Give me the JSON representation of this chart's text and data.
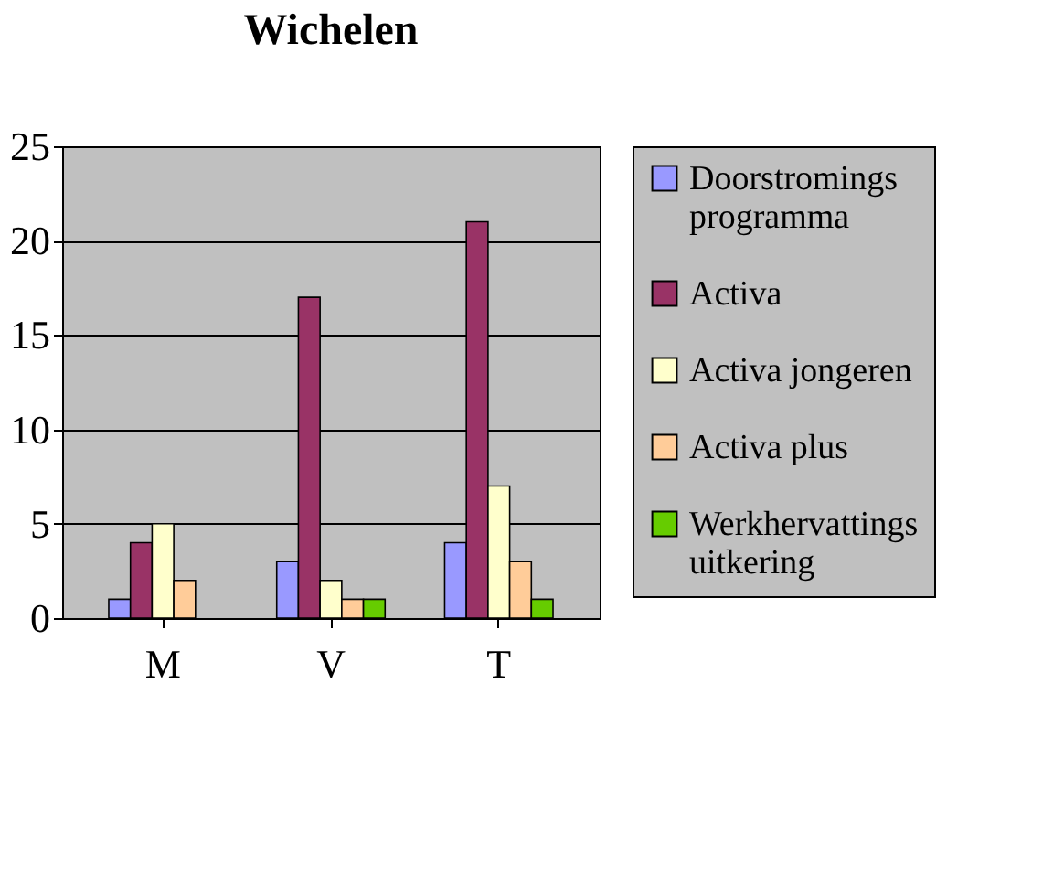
{
  "chart_data": {
    "type": "bar",
    "title": "Wichelen",
    "categories": [
      "M",
      "V",
      "T"
    ],
    "series": [
      {
        "name": "Doorstromings programma",
        "color": "#9999ff",
        "values": [
          1,
          3,
          4
        ]
      },
      {
        "name": "Activa",
        "color": "#993366",
        "values": [
          4,
          17,
          21
        ]
      },
      {
        "name": "Activa jongeren",
        "color": "#ffffcc",
        "values": [
          5,
          2,
          7
        ]
      },
      {
        "name": "Activa plus",
        "color": "#ffcc99",
        "values": [
          2,
          1,
          3
        ]
      },
      {
        "name": "Werkhervattings uitkering",
        "color": "#66cc00",
        "values": [
          null,
          1,
          1
        ]
      }
    ],
    "ylim": [
      0,
      25
    ],
    "yticks": [
      0,
      5,
      10,
      15,
      20,
      25
    ],
    "grid": "y",
    "legend": "right"
  }
}
